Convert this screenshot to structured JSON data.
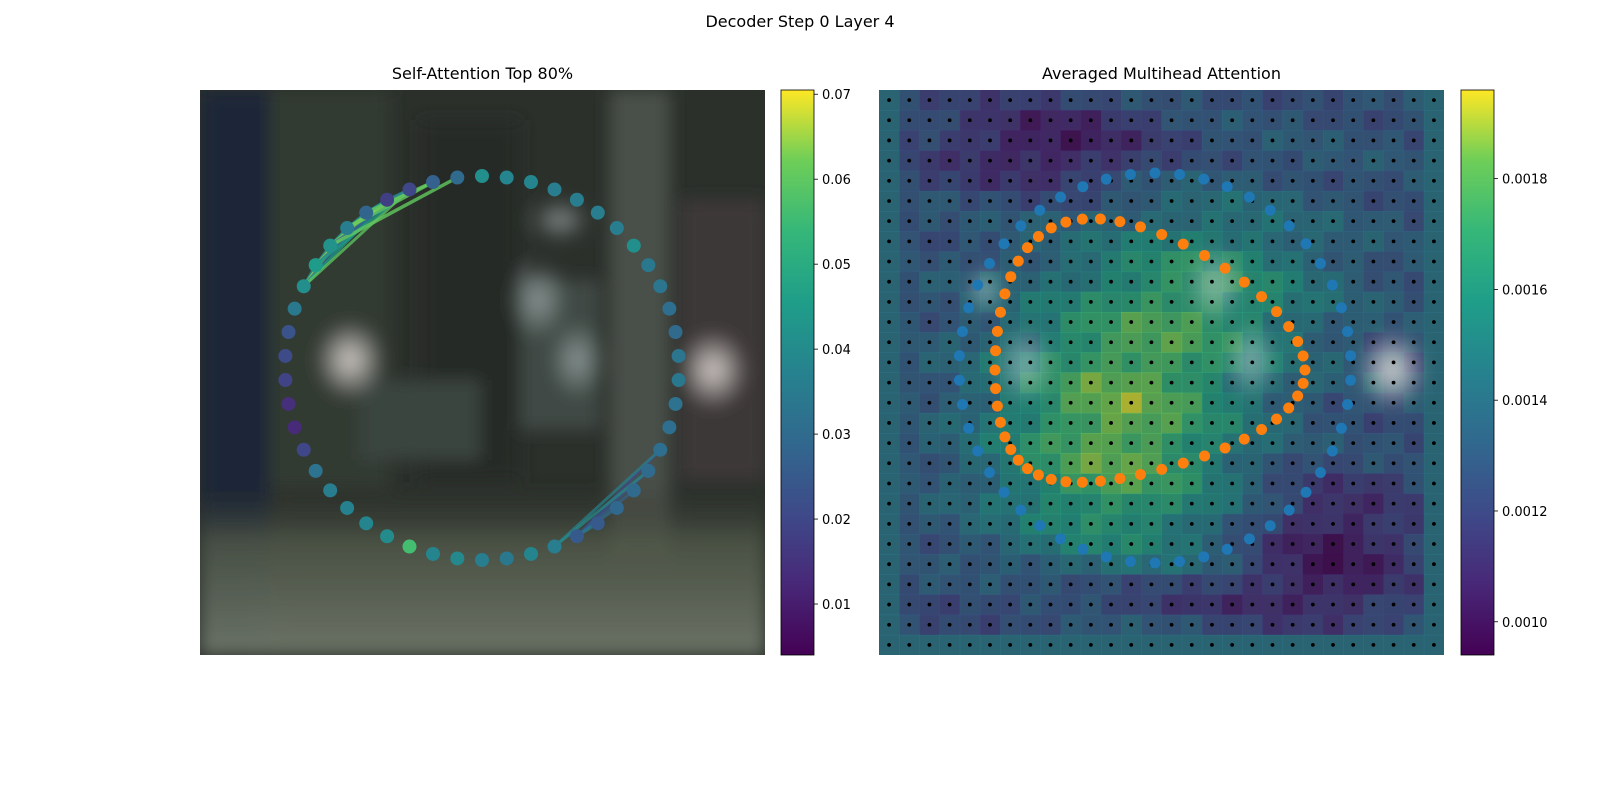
{
  "title": "Decoder Step 0 Layer 4",
  "chart_data": [
    {
      "type": "scatter",
      "title": "Self-Attention Top 80%",
      "description_of_marks": "ring of query points colored by attention weight, lines to top keys",
      "colorbar": {
        "colormap": "viridis",
        "range": [
          0.004,
          0.0705
        ],
        "ticks": [
          0.01,
          0.02,
          0.03,
          0.04,
          0.05,
          0.06,
          0.07
        ],
        "tick_labels": [
          "0.01",
          "0.02",
          "0.03",
          "0.04",
          "0.05",
          "0.06",
          "0.07"
        ]
      },
      "point_values": [
        0.041,
        0.038,
        0.038,
        0.036,
        0.036,
        0.036,
        0.036,
        0.041,
        0.034,
        0.033,
        0.031,
        0.03,
        0.033,
        0.034,
        0.032,
        0.031,
        0.031,
        0.03,
        0.03,
        0.029,
        0.025,
        0.025,
        0.036,
        0.038,
        0.034,
        0.036,
        0.039,
        0.038,
        0.056,
        0.04,
        0.038,
        0.037,
        0.036,
        0.032,
        0.02,
        0.013,
        0.014,
        0.019,
        0.021,
        0.023,
        0.034,
        0.041,
        0.045,
        0.042,
        0.036,
        0.028,
        0.018,
        0.02,
        0.027,
        0.03
      ],
      "highlighted_values": {
        "top_point": 0.056,
        "bottom_point": 0.056
      }
    },
    {
      "type": "heatmap",
      "title": "Averaged Multihead Attention",
      "colorbar": {
        "colormap": "viridis",
        "range": [
          0.00094,
          0.00196
        ],
        "ticks": [
          0.001,
          0.0012,
          0.0014,
          0.0016,
          0.0018
        ],
        "tick_labels": [
          "0.0010",
          "0.0012",
          "0.0014",
          "0.0016",
          "0.0018"
        ]
      },
      "grid": {
        "rows": 28,
        "cols": 28
      },
      "series": [
        {
          "color": "#1f77b4"
        },
        {
          "color": "#ff7f0e"
        }
      ]
    }
  ]
}
